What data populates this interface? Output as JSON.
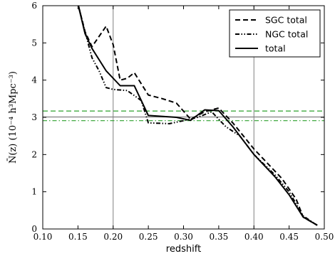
{
  "chart_data": {
    "type": "line",
    "title": "",
    "xlabel": "redshift",
    "ylabel": "N̄(z) (10⁻⁴ h³Mpc⁻³)",
    "xlim": [
      0.1,
      0.5
    ],
    "ylim": [
      0,
      6
    ],
    "xticks": [
      "0.10",
      "0.15",
      "0.20",
      "0.25",
      "0.30",
      "0.35",
      "0.40",
      "0.45",
      "0.50"
    ],
    "yticks": [
      "0",
      "1",
      "2",
      "3",
      "4",
      "5",
      "6"
    ],
    "grid": false,
    "legend_placement": "top-right",
    "vertical_reference_lines": [
      0.2,
      0.4
    ],
    "horizontal_reference_lines": [
      {
        "y": 3.17,
        "color": "#2ca02c",
        "style": "dashed"
      },
      {
        "y": 2.91,
        "color": "#2ca02c",
        "style": "dashdot"
      },
      {
        "y": 3.01,
        "color": "#808080",
        "style": "solid"
      }
    ],
    "series": [
      {
        "name": "SGC total",
        "style": "dashed",
        "color": "#000000",
        "points": [
          [
            0.148,
            6.2
          ],
          [
            0.16,
            5.3
          ],
          [
            0.17,
            4.9
          ],
          [
            0.19,
            5.45
          ],
          [
            0.2,
            4.95
          ],
          [
            0.21,
            4.0
          ],
          [
            0.22,
            4.05
          ],
          [
            0.23,
            4.2
          ],
          [
            0.25,
            3.6
          ],
          [
            0.27,
            3.5
          ],
          [
            0.29,
            3.38
          ],
          [
            0.31,
            2.95
          ],
          [
            0.33,
            3.15
          ],
          [
            0.35,
            3.25
          ],
          [
            0.37,
            2.85
          ],
          [
            0.4,
            2.15
          ],
          [
            0.42,
            1.75
          ],
          [
            0.44,
            1.35
          ],
          [
            0.46,
            0.8
          ],
          [
            0.47,
            0.32
          ],
          [
            0.49,
            0.1
          ]
        ]
      },
      {
        "name": "NGC total",
        "style": "dashdotdot",
        "color": "#000000",
        "points": [
          [
            0.148,
            6.2
          ],
          [
            0.16,
            5.3
          ],
          [
            0.17,
            4.6
          ],
          [
            0.18,
            4.25
          ],
          [
            0.19,
            3.8
          ],
          [
            0.2,
            3.75
          ],
          [
            0.22,
            3.72
          ],
          [
            0.24,
            3.45
          ],
          [
            0.25,
            2.85
          ],
          [
            0.28,
            2.83
          ],
          [
            0.31,
            2.95
          ],
          [
            0.32,
            3.0
          ],
          [
            0.34,
            3.15
          ],
          [
            0.36,
            2.75
          ],
          [
            0.38,
            2.5
          ],
          [
            0.4,
            2.0
          ],
          [
            0.43,
            1.45
          ],
          [
            0.45,
            1.0
          ],
          [
            0.47,
            0.35
          ],
          [
            0.49,
            0.1
          ]
        ]
      },
      {
        "name": "total",
        "style": "solid",
        "color": "#000000",
        "points": [
          [
            0.148,
            6.2
          ],
          [
            0.16,
            5.25
          ],
          [
            0.17,
            4.85
          ],
          [
            0.19,
            4.25
          ],
          [
            0.21,
            3.85
          ],
          [
            0.23,
            3.85
          ],
          [
            0.25,
            3.05
          ],
          [
            0.29,
            3.0
          ],
          [
            0.31,
            2.92
          ],
          [
            0.33,
            3.2
          ],
          [
            0.35,
            3.18
          ],
          [
            0.37,
            2.75
          ],
          [
            0.4,
            2.0
          ],
          [
            0.43,
            1.4
          ],
          [
            0.45,
            0.92
          ],
          [
            0.47,
            0.32
          ],
          [
            0.49,
            0.1
          ]
        ]
      }
    ]
  }
}
